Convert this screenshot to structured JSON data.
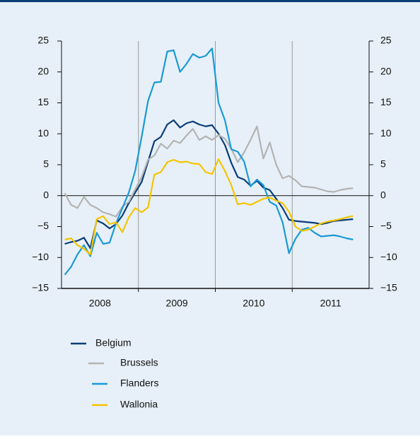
{
  "chart_data": {
    "type": "line",
    "x": [
      2008.042,
      2008.125,
      2008.208,
      2008.292,
      2008.375,
      2008.458,
      2008.542,
      2008.625,
      2008.708,
      2008.792,
      2008.875,
      2008.958,
      2009.042,
      2009.125,
      2009.208,
      2009.292,
      2009.375,
      2009.458,
      2009.542,
      2009.625,
      2009.708,
      2009.792,
      2009.875,
      2009.958,
      2010.042,
      2010.125,
      2010.208,
      2010.292,
      2010.375,
      2010.458,
      2010.542,
      2010.625,
      2010.708,
      2010.792,
      2010.875,
      2010.958,
      2011.042,
      2011.125,
      2011.208,
      2011.292,
      2011.375,
      2011.458,
      2011.542,
      2011.625,
      2011.708,
      2011.792
    ],
    "xlim": [
      2008,
      2012
    ],
    "xticks": [
      {
        "value": 2008.5,
        "label": "2008"
      },
      {
        "value": 2009.5,
        "label": "2009"
      },
      {
        "value": 2010.5,
        "label": "2010"
      },
      {
        "value": 2011.5,
        "label": "2011"
      }
    ],
    "xgrid": [
      2009,
      2010,
      2011
    ],
    "ylim": [
      -15,
      25
    ],
    "yticks": [
      {
        "value": -15,
        "label": "−15"
      },
      {
        "value": -10,
        "label": "−10"
      },
      {
        "value": -5,
        "label": "−5"
      },
      0,
      5,
      10,
      15,
      20,
      25
    ],
    "series": [
      {
        "name": "Belgium",
        "color": "#0a3d78",
        "values": [
          -7.8,
          -7.5,
          -7.3,
          -6.8,
          -8.5,
          -4,
          -4.5,
          -5.3,
          -4.6,
          -3.2,
          -1.2,
          0.5,
          2.2,
          5.5,
          8.8,
          9.5,
          11.5,
          12.2,
          11,
          11.7,
          12,
          11.5,
          11.2,
          11.4,
          10,
          8.2,
          5.3,
          3,
          2.6,
          1.6,
          2.4,
          1.3,
          0.9,
          -0.5,
          -2,
          -3.9,
          -4.1,
          -4.2,
          -4.3,
          -4.4,
          -4.6,
          -4.4,
          -4.1,
          -4,
          -3.9,
          -3.8
        ]
      },
      {
        "name": "Brussels",
        "color": "#b3b3b3",
        "values": [
          0.4,
          -1.5,
          -2,
          -0.2,
          -1.5,
          -2,
          -2.7,
          -3,
          -3.4,
          -1.8,
          -1,
          1,
          3,
          5.8,
          6.5,
          8.4,
          7.6,
          8.9,
          8.5,
          9.7,
          10.8,
          9,
          9.6,
          9,
          9.8,
          9.2,
          7.6,
          5.4,
          7,
          9,
          11.2,
          6,
          8.6,
          5,
          2.8,
          3.2,
          2.5,
          1.5,
          1.4,
          1.3,
          1,
          0.7,
          0.6,
          0.9,
          1.1,
          1.2
        ]
      },
      {
        "name": "Flanders",
        "color": "#1a9ad6",
        "values": [
          -12.8,
          -11.5,
          -9.5,
          -8,
          -9.8,
          -6,
          -7.8,
          -7.6,
          -4.5,
          -2,
          0.5,
          4,
          9.5,
          15.3,
          18.3,
          18.4,
          23.3,
          23.5,
          20,
          21.3,
          22.9,
          22.3,
          22.6,
          23.8,
          15,
          12.2,
          7.5,
          7.1,
          5.5,
          1.5,
          2.6,
          1.7,
          -1,
          -1.6,
          -4.3,
          -9.3,
          -7,
          -5.5,
          -5.2,
          -6,
          -6.6,
          -6.5,
          -6.4,
          -6.6,
          -6.9,
          -7.1
        ]
      },
      {
        "name": "Wallonia",
        "color": "#f5c400",
        "values": [
          -7.1,
          -6.9,
          -8,
          -8.6,
          -9.5,
          -3.8,
          -3.3,
          -4.6,
          -4.3,
          -5.9,
          -3.5,
          -2,
          -2.7,
          -1.9,
          3.4,
          3.8,
          5.4,
          5.8,
          5.4,
          5.5,
          5.2,
          5.1,
          3.8,
          3.5,
          5.9,
          4,
          1.7,
          -1.4,
          -1.2,
          -1.5,
          -1,
          -0.5,
          -0.3,
          -0.8,
          -1.2,
          -2.6,
          -5,
          -5.7,
          -5.5,
          -5,
          -4.5,
          -4.2,
          -4,
          -3.8,
          -3.5,
          -3.3
        ]
      }
    ]
  }
}
